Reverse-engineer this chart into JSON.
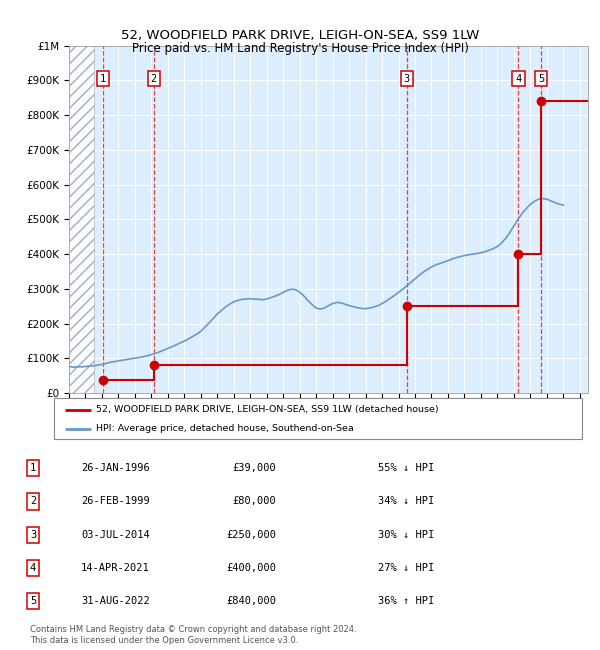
{
  "title": "52, WOODFIELD PARK DRIVE, LEIGH-ON-SEA, SS9 1LW",
  "subtitle": "Price paid vs. HM Land Registry's House Price Index (HPI)",
  "ylim": [
    0,
    1000000
  ],
  "yticks": [
    0,
    100000,
    200000,
    300000,
    400000,
    500000,
    600000,
    700000,
    800000,
    900000,
    1000000
  ],
  "ytick_labels": [
    "£0",
    "£100K",
    "£200K",
    "£300K",
    "£400K",
    "£500K",
    "£600K",
    "£700K",
    "£800K",
    "£900K",
    "£1M"
  ],
  "xlim_start": 1994.0,
  "xlim_end": 2025.5,
  "plot_bg_color": "#ddeeff",
  "hatch_end_year": 1995.5,
  "transactions": [
    {
      "num": 1,
      "year": 1996.07,
      "price": 39000
    },
    {
      "num": 2,
      "year": 1999.15,
      "price": 80000
    },
    {
      "num": 3,
      "year": 2014.5,
      "price": 250000
    },
    {
      "num": 4,
      "year": 2021.28,
      "price": 400000
    },
    {
      "num": 5,
      "year": 2022.66,
      "price": 840000
    }
  ],
  "table_rows": [
    {
      "num": 1,
      "date": "26-JAN-1996",
      "price": "£39,000",
      "hpi": "55% ↓ HPI"
    },
    {
      "num": 2,
      "date": "26-FEB-1999",
      "price": "£80,000",
      "hpi": "34% ↓ HPI"
    },
    {
      "num": 3,
      "date": "03-JUL-2014",
      "price": "£250,000",
      "hpi": "30% ↓ HPI"
    },
    {
      "num": 4,
      "date": "14-APR-2021",
      "price": "£400,000",
      "hpi": "27% ↓ HPI"
    },
    {
      "num": 5,
      "date": "31-AUG-2022",
      "price": "£840,000",
      "hpi": "36% ↑ HPI"
    }
  ],
  "legend_price_label": "52, WOODFIELD PARK DRIVE, LEIGH-ON-SEA, SS9 1LW (detached house)",
  "legend_hpi_label": "HPI: Average price, detached house, Southend-on-Sea",
  "footnote": "Contains HM Land Registry data © Crown copyright and database right 2024.\nThis data is licensed under the Open Government Licence v3.0.",
  "price_line_color": "#cc0000",
  "hpi_line_color": "#6699cc",
  "transaction_dot_color": "#cc0000",
  "vline_color": "#dd3333",
  "hpi_data_years": [
    1994.0,
    1994.25,
    1994.5,
    1994.75,
    1995.0,
    1995.25,
    1995.5,
    1995.75,
    1996.0,
    1996.25,
    1996.5,
    1996.75,
    1997.0,
    1997.25,
    1997.5,
    1997.75,
    1998.0,
    1998.25,
    1998.5,
    1998.75,
    1999.0,
    1999.25,
    1999.5,
    1999.75,
    2000.0,
    2000.25,
    2000.5,
    2000.75,
    2001.0,
    2001.25,
    2001.5,
    2001.75,
    2002.0,
    2002.25,
    2002.5,
    2002.75,
    2003.0,
    2003.25,
    2003.5,
    2003.75,
    2004.0,
    2004.25,
    2004.5,
    2004.75,
    2005.0,
    2005.25,
    2005.5,
    2005.75,
    2006.0,
    2006.25,
    2006.5,
    2006.75,
    2007.0,
    2007.25,
    2007.5,
    2007.75,
    2008.0,
    2008.25,
    2008.5,
    2008.75,
    2009.0,
    2009.25,
    2009.5,
    2009.75,
    2010.0,
    2010.25,
    2010.5,
    2010.75,
    2011.0,
    2011.25,
    2011.5,
    2011.75,
    2012.0,
    2012.25,
    2012.5,
    2012.75,
    2013.0,
    2013.25,
    2013.5,
    2013.75,
    2014.0,
    2014.25,
    2014.5,
    2014.75,
    2015.0,
    2015.25,
    2015.5,
    2015.75,
    2016.0,
    2016.25,
    2016.5,
    2016.75,
    2017.0,
    2017.25,
    2017.5,
    2017.75,
    2018.0,
    2018.25,
    2018.5,
    2018.75,
    2019.0,
    2019.25,
    2019.5,
    2019.75,
    2020.0,
    2020.25,
    2020.5,
    2020.75,
    2021.0,
    2021.25,
    2021.5,
    2021.75,
    2022.0,
    2022.25,
    2022.5,
    2022.75,
    2023.0,
    2023.25,
    2023.5,
    2023.75,
    2024.0
  ],
  "hpi_data_values": [
    77000,
    75000,
    76000,
    76000,
    77000,
    78000,
    79000,
    81000,
    83000,
    86000,
    89000,
    91000,
    93000,
    95000,
    97000,
    99000,
    101000,
    103000,
    105000,
    108000,
    111000,
    115000,
    119000,
    124000,
    129000,
    134000,
    139000,
    145000,
    150000,
    156000,
    163000,
    170000,
    178000,
    190000,
    202000,
    215000,
    228000,
    238000,
    248000,
    256000,
    263000,
    267000,
    270000,
    271000,
    272000,
    271000,
    270000,
    269000,
    271000,
    275000,
    279000,
    284000,
    290000,
    296000,
    299000,
    298000,
    291000,
    280000,
    267000,
    255000,
    245000,
    242000,
    245000,
    252000,
    258000,
    261000,
    260000,
    256000,
    252000,
    249000,
    246000,
    244000,
    243000,
    245000,
    248000,
    252000,
    258000,
    265000,
    273000,
    281000,
    290000,
    299000,
    309000,
    319000,
    329000,
    339000,
    348000,
    356000,
    363000,
    369000,
    373000,
    377000,
    381000,
    386000,
    390000,
    393000,
    396000,
    398000,
    400000,
    402000,
    404000,
    407000,
    411000,
    416000,
    422000,
    432000,
    445000,
    462000,
    481000,
    500000,
    517000,
    531000,
    543000,
    552000,
    558000,
    560000,
    558000,
    553000,
    548000,
    544000,
    541000
  ]
}
